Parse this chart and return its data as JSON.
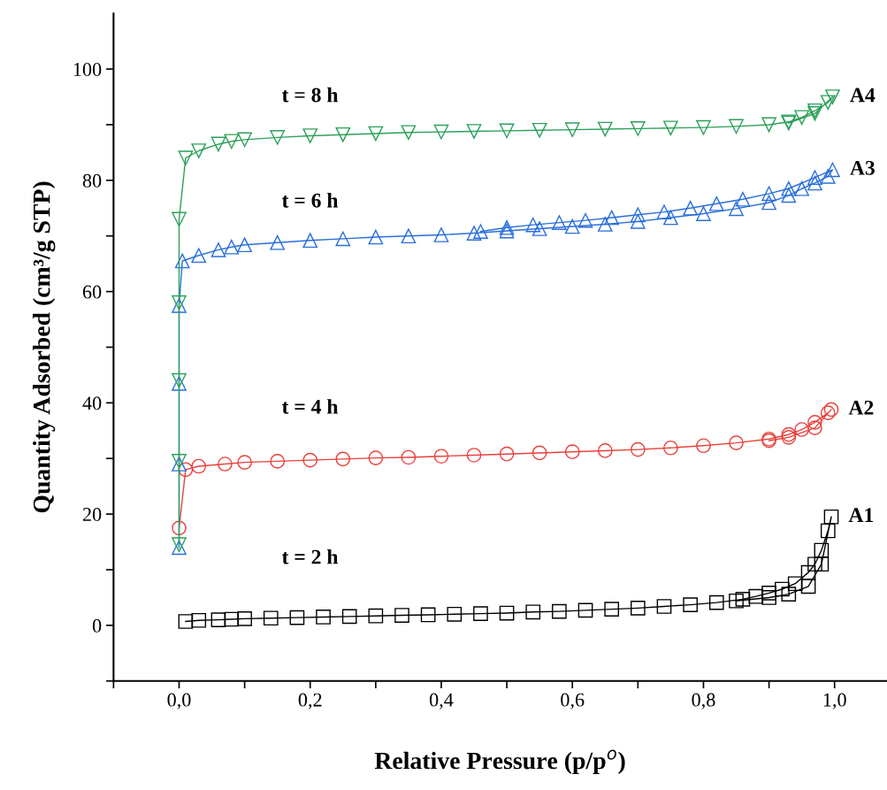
{
  "chart_data": {
    "type": "line",
    "xlabel": "Relative Pressure (p/p$^{o}$)",
    "ylabel": "Quantity Adsorbed (cm³/g STP)",
    "xlim": [
      -0.1,
      1.08
    ],
    "ylim": [
      -10,
      110
    ],
    "xticks": [
      {
        "value": -0.1,
        "label": null
      },
      {
        "value": 0,
        "label": "0,0"
      },
      {
        "value": 0.1,
        "label": null
      },
      {
        "value": 0.2,
        "label": "0,2"
      },
      {
        "value": 0.3,
        "label": null
      },
      {
        "value": 0.4,
        "label": "0,4"
      },
      {
        "value": 0.5,
        "label": null
      },
      {
        "value": 0.6,
        "label": "0,6"
      },
      {
        "value": 0.7,
        "label": null
      },
      {
        "value": 0.8,
        "label": "0,8"
      },
      {
        "value": 0.9,
        "label": null
      },
      {
        "value": 1.0,
        "label": "1,0"
      }
    ],
    "yticks": [
      {
        "value": -10,
        "label": null
      },
      0,
      {
        "value": 10,
        "label": null
      },
      20,
      {
        "value": 30,
        "label": null
      },
      40,
      {
        "value": 50,
        "label": null
      },
      60,
      {
        "value": 70,
        "label": null
      },
      80,
      {
        "value": 90,
        "label": null
      },
      100
    ],
    "grid": false,
    "legend": false,
    "series": [
      {
        "name": "A1",
        "color": "#000000",
        "marker": "square",
        "x": [
          0.01,
          0.03,
          0.06,
          0.08,
          0.1,
          0.14,
          0.18,
          0.22,
          0.26,
          0.3,
          0.34,
          0.38,
          0.42,
          0.46,
          0.5,
          0.54,
          0.58,
          0.62,
          0.66,
          0.7,
          0.74,
          0.78,
          0.82,
          0.86,
          0.88,
          0.9,
          0.92,
          0.94,
          0.96,
          0.97,
          0.98,
          0.99,
          0.995,
          0.98,
          0.96,
          0.93,
          0.9,
          0.85
        ],
        "values": [
          0.7,
          0.9,
          1.0,
          1.1,
          1.2,
          1.3,
          1.4,
          1.5,
          1.6,
          1.7,
          1.8,
          1.9,
          2.0,
          2.1,
          2.2,
          2.4,
          2.5,
          2.7,
          2.9,
          3.1,
          3.4,
          3.7,
          4.1,
          4.7,
          5.2,
          5.8,
          6.5,
          7.5,
          9.5,
          11,
          13.5,
          17,
          19.5,
          11,
          7,
          5.6,
          5.0,
          4.4
        ]
      },
      {
        "name": "A2",
        "color": "#e8413c",
        "marker": "circle",
        "x": [
          0.0,
          0.01,
          0.03,
          0.07,
          0.1,
          0.15,
          0.2,
          0.25,
          0.3,
          0.35,
          0.4,
          0.45,
          0.5,
          0.55,
          0.6,
          0.65,
          0.7,
          0.75,
          0.8,
          0.85,
          0.9,
          0.93,
          0.95,
          0.97,
          0.99,
          0.995,
          0.97,
          0.93,
          0.9
        ],
        "values": [
          17.5,
          28,
          28.6,
          29.0,
          29.3,
          29.5,
          29.7,
          29.9,
          30.1,
          30.2,
          30.4,
          30.6,
          30.8,
          31.0,
          31.2,
          31.4,
          31.6,
          31.9,
          32.3,
          32.8,
          33.5,
          34.3,
          35.2,
          36.5,
          38.2,
          38.8,
          35.5,
          33.8,
          33.2
        ]
      },
      {
        "name": "A3",
        "color": "#2a6fdb",
        "marker": "triangle",
        "x": [
          0.0,
          0.0,
          0.0,
          0.0,
          0.005,
          0.03,
          0.06,
          0.08,
          0.1,
          0.15,
          0.2,
          0.25,
          0.3,
          0.35,
          0.4,
          0.45,
          0.5,
          0.55,
          0.6,
          0.65,
          0.7,
          0.75,
          0.8,
          0.85,
          0.9,
          0.93,
          0.95,
          0.97,
          0.99,
          0.997,
          0.97,
          0.93,
          0.9,
          0.86,
          0.82,
          0.78,
          0.74,
          0.7,
          0.66,
          0.62,
          0.58,
          0.54,
          0.5,
          0.46
        ],
        "values": [
          14,
          29,
          43.5,
          57.5,
          65.5,
          66.5,
          67.5,
          68,
          68.4,
          68.8,
          69.2,
          69.5,
          69.8,
          70,
          70.2,
          70.5,
          70.9,
          71.3,
          71.7,
          72.1,
          72.6,
          73.3,
          74,
          74.9,
          76,
          77.3,
          78.5,
          79.5,
          80.7,
          81.9,
          80.5,
          78.5,
          77.6,
          76.6,
          75.8,
          75,
          74.3,
          73.8,
          73.3,
          72.8,
          72.4,
          72,
          71.5,
          70.8
        ]
      },
      {
        "name": "A4",
        "color": "#2ca05a",
        "marker": "triangle_down",
        "x": [
          0.0,
          0.0,
          0.0,
          0.0,
          0.0,
          0.01,
          0.03,
          0.06,
          0.08,
          0.1,
          0.15,
          0.2,
          0.25,
          0.3,
          0.35,
          0.4,
          0.45,
          0.5,
          0.55,
          0.6,
          0.65,
          0.7,
          0.75,
          0.8,
          0.85,
          0.9,
          0.93,
          0.95,
          0.97,
          0.99,
          0.997,
          0.97,
          0.93
        ],
        "values": [
          14.5,
          29.5,
          44,
          58,
          73,
          84,
          85.3,
          86.5,
          87,
          87.3,
          87.7,
          88,
          88.2,
          88.4,
          88.6,
          88.7,
          88.8,
          88.9,
          89,
          89.1,
          89.2,
          89.3,
          89.4,
          89.5,
          89.7,
          90,
          90.5,
          91.3,
          92.5,
          94,
          95,
          92,
          90.3
        ]
      }
    ],
    "annotations": [
      "t = 2 h",
      "t = 4 h",
      "t = 6 h",
      "t = 8 h"
    ]
  }
}
